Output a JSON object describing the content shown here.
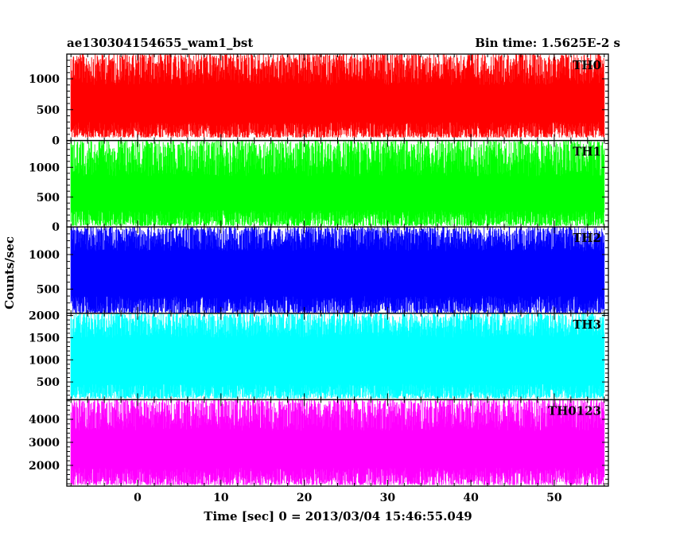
{
  "chart_data": {
    "type": "line",
    "title_left": "ae130304154655_wam1_bst",
    "title_right": "Bin time: 1.5625E-2 s",
    "xlabel": "Time [sec] 0 = 2013/03/04 15:46:55.049",
    "ylabel": "Counts/sec",
    "xlim": [
      -8.5,
      56.5
    ],
    "data_x_range": [
      -8,
      56
    ],
    "x_ticks": [
      0,
      10,
      20,
      30,
      40,
      50
    ],
    "grid": false,
    "panels": [
      {
        "name": "TH0",
        "color": "#ff0000",
        "ylim": [
          0,
          1400
        ],
        "y_ticks": [
          0,
          500,
          1000
        ],
        "envelope": {
          "min_low": 50,
          "min_high": 300,
          "max_low": 900,
          "max_high": 1400,
          "center": 620
        }
      },
      {
        "name": "TH1",
        "color": "#00ff00",
        "ylim": [
          0,
          1450
        ],
        "y_ticks": [
          0,
          500,
          1000
        ],
        "envelope": {
          "min_low": 20,
          "min_high": 280,
          "max_low": 850,
          "max_high": 1450,
          "center": 600
        }
      },
      {
        "name": "TH2",
        "color": "#0000ff",
        "ylim": [
          150,
          1400
        ],
        "y_ticks": [
          500,
          1000
        ],
        "envelope": {
          "min_low": 150,
          "min_high": 400,
          "max_low": 1050,
          "max_high": 1400,
          "center": 780
        }
      },
      {
        "name": "TH3",
        "color": "#00ffff",
        "ylim": [
          100,
          2050
        ],
        "y_ticks": [
          500,
          1000,
          1500,
          2000
        ],
        "envelope": {
          "min_low": 130,
          "min_high": 450,
          "max_low": 1500,
          "max_high": 2050,
          "center": 1150
        }
      },
      {
        "name": "TH0123",
        "color": "#ff00ff",
        "ylim": [
          1100,
          4850
        ],
        "y_ticks": [
          2000,
          3000,
          4000
        ],
        "envelope": {
          "min_low": 1150,
          "min_high": 1900,
          "max_low": 3500,
          "max_high": 4850,
          "center": 2700
        }
      }
    ]
  }
}
